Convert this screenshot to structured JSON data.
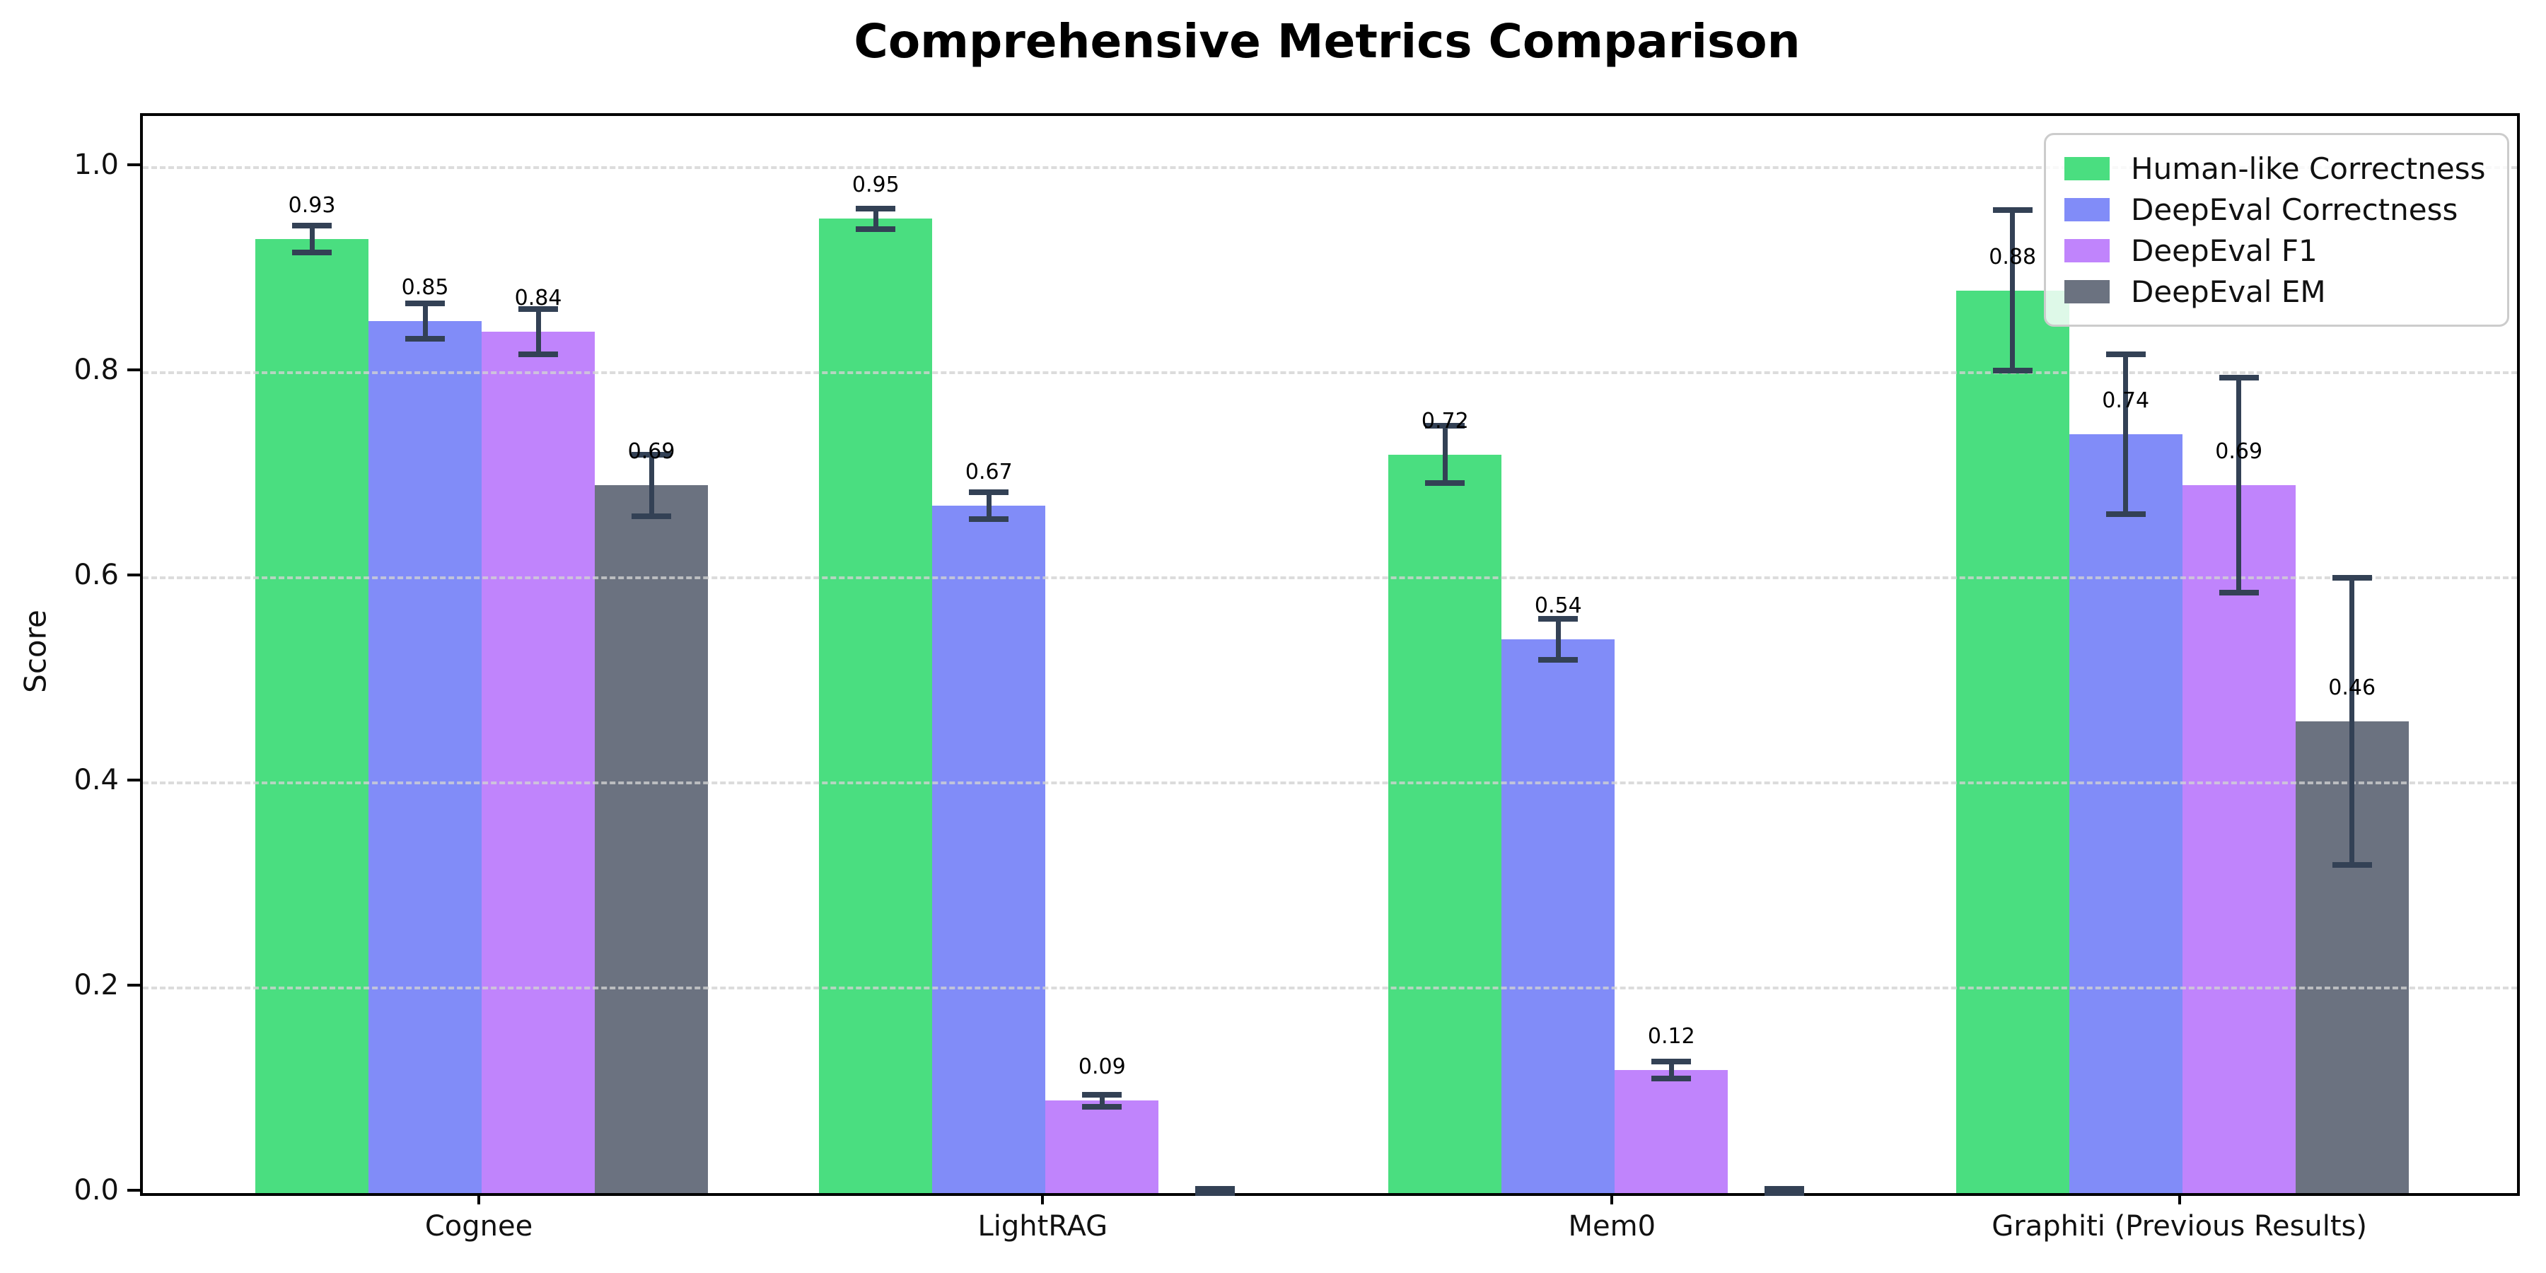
{
  "chart_data": {
    "type": "bar",
    "title": "Comprehensive Metrics Comparison",
    "xlabel": "",
    "ylabel": "Score",
    "ylim": [
      0,
      1.05
    ],
    "yticks": [
      0.0,
      0.2,
      0.4,
      0.6,
      0.8,
      1.0
    ],
    "grid": "horizontal-dashed",
    "legend_position": "upper-right",
    "error_bar_color": "#334155",
    "categories": [
      "Cognee",
      "LightRAG",
      "Mem0",
      "Graphiti (Previous Results)"
    ],
    "series": [
      {
        "name": "Human-like Correctness",
        "color": "#4ade80",
        "values": [
          0.93,
          0.95,
          0.72,
          0.88
        ],
        "errors": [
          0.013,
          0.01,
          0.028,
          0.078
        ]
      },
      {
        "name": "DeepEval Correctness",
        "color": "#818cf8",
        "values": [
          0.85,
          0.67,
          0.54,
          0.74
        ],
        "errors": [
          0.017,
          0.013,
          0.02,
          0.078
        ]
      },
      {
        "name": "DeepEval F1",
        "color": "#c084fc",
        "values": [
          0.84,
          0.09,
          0.12,
          0.69
        ],
        "errors": [
          0.022,
          0.006,
          0.008,
          0.105
        ]
      },
      {
        "name": "DeepEval EM",
        "color": "#6b7280",
        "values": [
          0.69,
          0.0,
          0.0,
          0.46
        ],
        "errors": [
          0.03,
          0.004,
          0.004,
          0.14
        ]
      }
    ]
  }
}
